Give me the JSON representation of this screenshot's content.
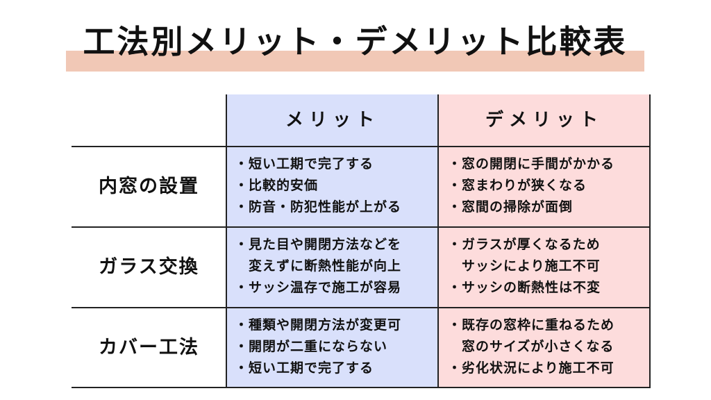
{
  "title": "工法別メリット・デメリット比較表",
  "colors": {
    "highlight": "#f1c8b6",
    "merit_bg": "#d9e0fb",
    "demerit_bg": "#fddcdc"
  },
  "bullet": "・",
  "headers": {
    "merit": "メリット",
    "demerit": "デメリット"
  },
  "rows": [
    {
      "label": "内窓の設置",
      "merits": [
        [
          "短い工期で完了する"
        ],
        [
          "比較的安価"
        ],
        [
          "防音・防犯性能が上がる"
        ]
      ],
      "demerits": [
        [
          "窓の開閉に手間がかかる"
        ],
        [
          "窓まわりが狭くなる"
        ],
        [
          "窓間の掃除が面倒"
        ]
      ]
    },
    {
      "label": "ガラス交換",
      "merits": [
        [
          "見た目や開閉方法などを",
          "変えずに断熱性能が向上"
        ],
        [
          "サッシ温存で施工が容易"
        ]
      ],
      "demerits": [
        [
          "ガラスが厚くなるため",
          "サッシにより施工不可"
        ],
        [
          "サッシの断熱性は不変"
        ]
      ]
    },
    {
      "label": "カバー工法",
      "merits": [
        [
          "種類や開閉方法が変更可"
        ],
        [
          "開閉が二重にならない"
        ],
        [
          "短い工期で完了する"
        ]
      ],
      "demerits": [
        [
          "既存の窓枠に重ねるため",
          "窓のサイズが小さくなる"
        ],
        [
          "劣化状況により施工不可"
        ]
      ]
    }
  ]
}
